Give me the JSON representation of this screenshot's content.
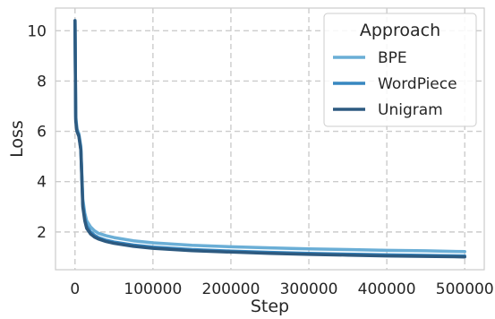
{
  "chart_data": {
    "type": "line",
    "title": "",
    "xlabel": "Step",
    "ylabel": "Loss",
    "xlim": [
      -25000,
      525000
    ],
    "ylim": [
      0.5,
      10.9
    ],
    "xticks": [
      0,
      100000,
      200000,
      300000,
      400000,
      500000
    ],
    "xtick_labels": [
      "0",
      "100000",
      "200000",
      "300000",
      "400000",
      "500000"
    ],
    "yticks": [
      2,
      4,
      6,
      8,
      10
    ],
    "ytick_labels": [
      "2",
      "4",
      "6",
      "8",
      "10"
    ],
    "grid": true,
    "legend": {
      "title": "Approach",
      "placement": "top-right"
    },
    "series": [
      {
        "name": "BPE",
        "color": "#6aaed6",
        "x": [
          0,
          1000,
          2500,
          5000,
          7500,
          10000,
          12500,
          15000,
          20000,
          25000,
          30000,
          40000,
          50000,
          75000,
          100000,
          150000,
          200000,
          250000,
          300000,
          350000,
          400000,
          450000,
          500000
        ],
        "y": [
          10.4,
          6.6,
          6.1,
          5.9,
          5.4,
          3.3,
          2.75,
          2.45,
          2.2,
          2.05,
          1.95,
          1.85,
          1.78,
          1.65,
          1.57,
          1.47,
          1.41,
          1.37,
          1.33,
          1.3,
          1.27,
          1.25,
          1.22
        ]
      },
      {
        "name": "WordPiece",
        "color": "#3787c0",
        "x": [
          0,
          1000,
          2500,
          5000,
          7500,
          10000,
          12500,
          15000,
          20000,
          25000,
          30000,
          40000,
          50000,
          75000,
          100000,
          150000,
          200000,
          250000,
          300000,
          350000,
          400000,
          450000,
          500000
        ],
        "y": [
          10.4,
          6.5,
          6.0,
          5.85,
          5.3,
          3.1,
          2.55,
          2.25,
          2.0,
          1.87,
          1.78,
          1.67,
          1.6,
          1.48,
          1.4,
          1.3,
          1.24,
          1.19,
          1.15,
          1.12,
          1.09,
          1.07,
          1.05
        ]
      },
      {
        "name": "Unigram",
        "color": "#2d5a80",
        "x": [
          0,
          1000,
          2500,
          5000,
          7500,
          10000,
          12500,
          15000,
          20000,
          25000,
          30000,
          40000,
          50000,
          75000,
          100000,
          150000,
          200000,
          250000,
          300000,
          350000,
          400000,
          450000,
          500000
        ],
        "y": [
          10.4,
          6.4,
          6.0,
          5.8,
          5.25,
          3.0,
          2.45,
          2.15,
          1.92,
          1.8,
          1.72,
          1.62,
          1.55,
          1.43,
          1.35,
          1.26,
          1.2,
          1.15,
          1.11,
          1.08,
          1.05,
          1.03,
          1.01
        ]
      }
    ]
  }
}
